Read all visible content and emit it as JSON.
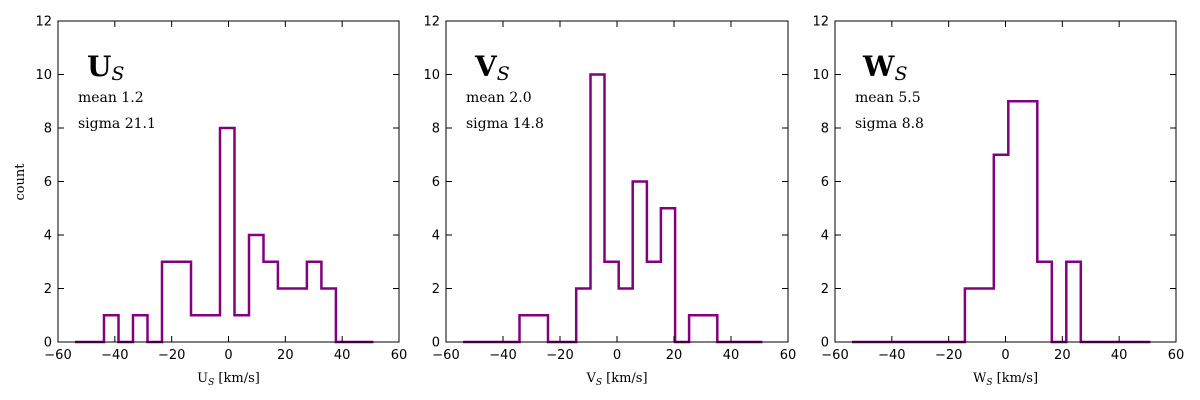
{
  "chart_data": [
    {
      "type": "histogram",
      "name": "U",
      "title_main": "U",
      "title_sub": "S",
      "mean_label": "mean 1.2",
      "sigma_label": "sigma 21.1",
      "xlabel_main": "U",
      "xlabel_sub": "S",
      "xlabel_unit": " [km/s]",
      "ylabel": "count",
      "xlim": [
        -60,
        60
      ],
      "ylim": [
        0,
        12
      ],
      "xticks": [
        -60,
        -40,
        -20,
        0,
        20,
        40,
        60
      ],
      "xtick_labels": [
        "−60",
        "−40",
        "−20",
        "0",
        "20",
        "40",
        "60"
      ],
      "yticks": [
        0,
        2,
        4,
        6,
        8,
        10,
        12
      ],
      "ytick_labels": [
        "0",
        "2",
        "4",
        "6",
        "8",
        "10",
        "12"
      ],
      "bin_edges": [
        -54,
        -43.8,
        -38.7,
        -33.6,
        -28.5,
        -23.4,
        -13.2,
        -3,
        2.1,
        7.2,
        12.3,
        17.4,
        27.6,
        32.7,
        37.8,
        51
      ],
      "counts": [
        0,
        1,
        0,
        1,
        0,
        3,
        1,
        8,
        1,
        4,
        3,
        2,
        3,
        2,
        0
      ]
    },
    {
      "type": "histogram",
      "name": "V",
      "title_main": "V",
      "title_sub": "S",
      "mean_label": "mean 2.0",
      "sigma_label": "sigma 14.8",
      "xlabel_main": "V",
      "xlabel_sub": "S",
      "xlabel_unit": " [km/s]",
      "ylabel": "",
      "xlim": [
        -60,
        60
      ],
      "ylim": [
        0,
        12
      ],
      "xticks": [
        -60,
        -40,
        -20,
        0,
        20,
        40,
        60
      ],
      "xtick_labels": [
        "−60",
        "−40",
        "−20",
        "0",
        "20",
        "40",
        "60"
      ],
      "yticks": [
        0,
        2,
        4,
        6,
        8,
        10,
        12
      ],
      "ytick_labels": [
        "0",
        "2",
        "4",
        "6",
        "8",
        "10",
        "12"
      ],
      "bin_edges": [
        -54,
        -34.2,
        -24.2,
        -14.3,
        -9.3,
        -4.4,
        0.6,
        5.5,
        10.5,
        15.4,
        20.4,
        25.3,
        35.2,
        51
      ],
      "counts": [
        0,
        1,
        0,
        2,
        10,
        3,
        2,
        6,
        3,
        5,
        0,
        1,
        0
      ]
    },
    {
      "type": "histogram",
      "name": "W",
      "title_main": "W",
      "title_sub": "S",
      "mean_label": "mean 5.5",
      "sigma_label": "sigma 8.8",
      "xlabel_main": "W",
      "xlabel_sub": "S",
      "xlabel_unit": " [km/s]",
      "ylabel": "",
      "xlim": [
        -60,
        60
      ],
      "ylim": [
        0,
        12
      ],
      "xticks": [
        -60,
        -40,
        -20,
        0,
        20,
        40,
        60
      ],
      "xtick_labels": [
        "−60",
        "−40",
        "−20",
        "0",
        "20",
        "40",
        "60"
      ],
      "yticks": [
        0,
        2,
        4,
        6,
        8,
        10,
        12
      ],
      "ytick_labels": [
        "0",
        "2",
        "4",
        "6",
        "8",
        "10",
        "12"
      ],
      "bin_edges": [
        -54,
        -14.3,
        -4.1,
        1,
        11.2,
        16.3,
        21.4,
        26.5,
        51
      ],
      "counts": [
        0,
        2,
        7,
        9,
        3,
        0,
        3,
        0
      ]
    }
  ],
  "colors": {
    "histogram": "#800080",
    "axes": "#000000",
    "background": "#ffffff"
  }
}
